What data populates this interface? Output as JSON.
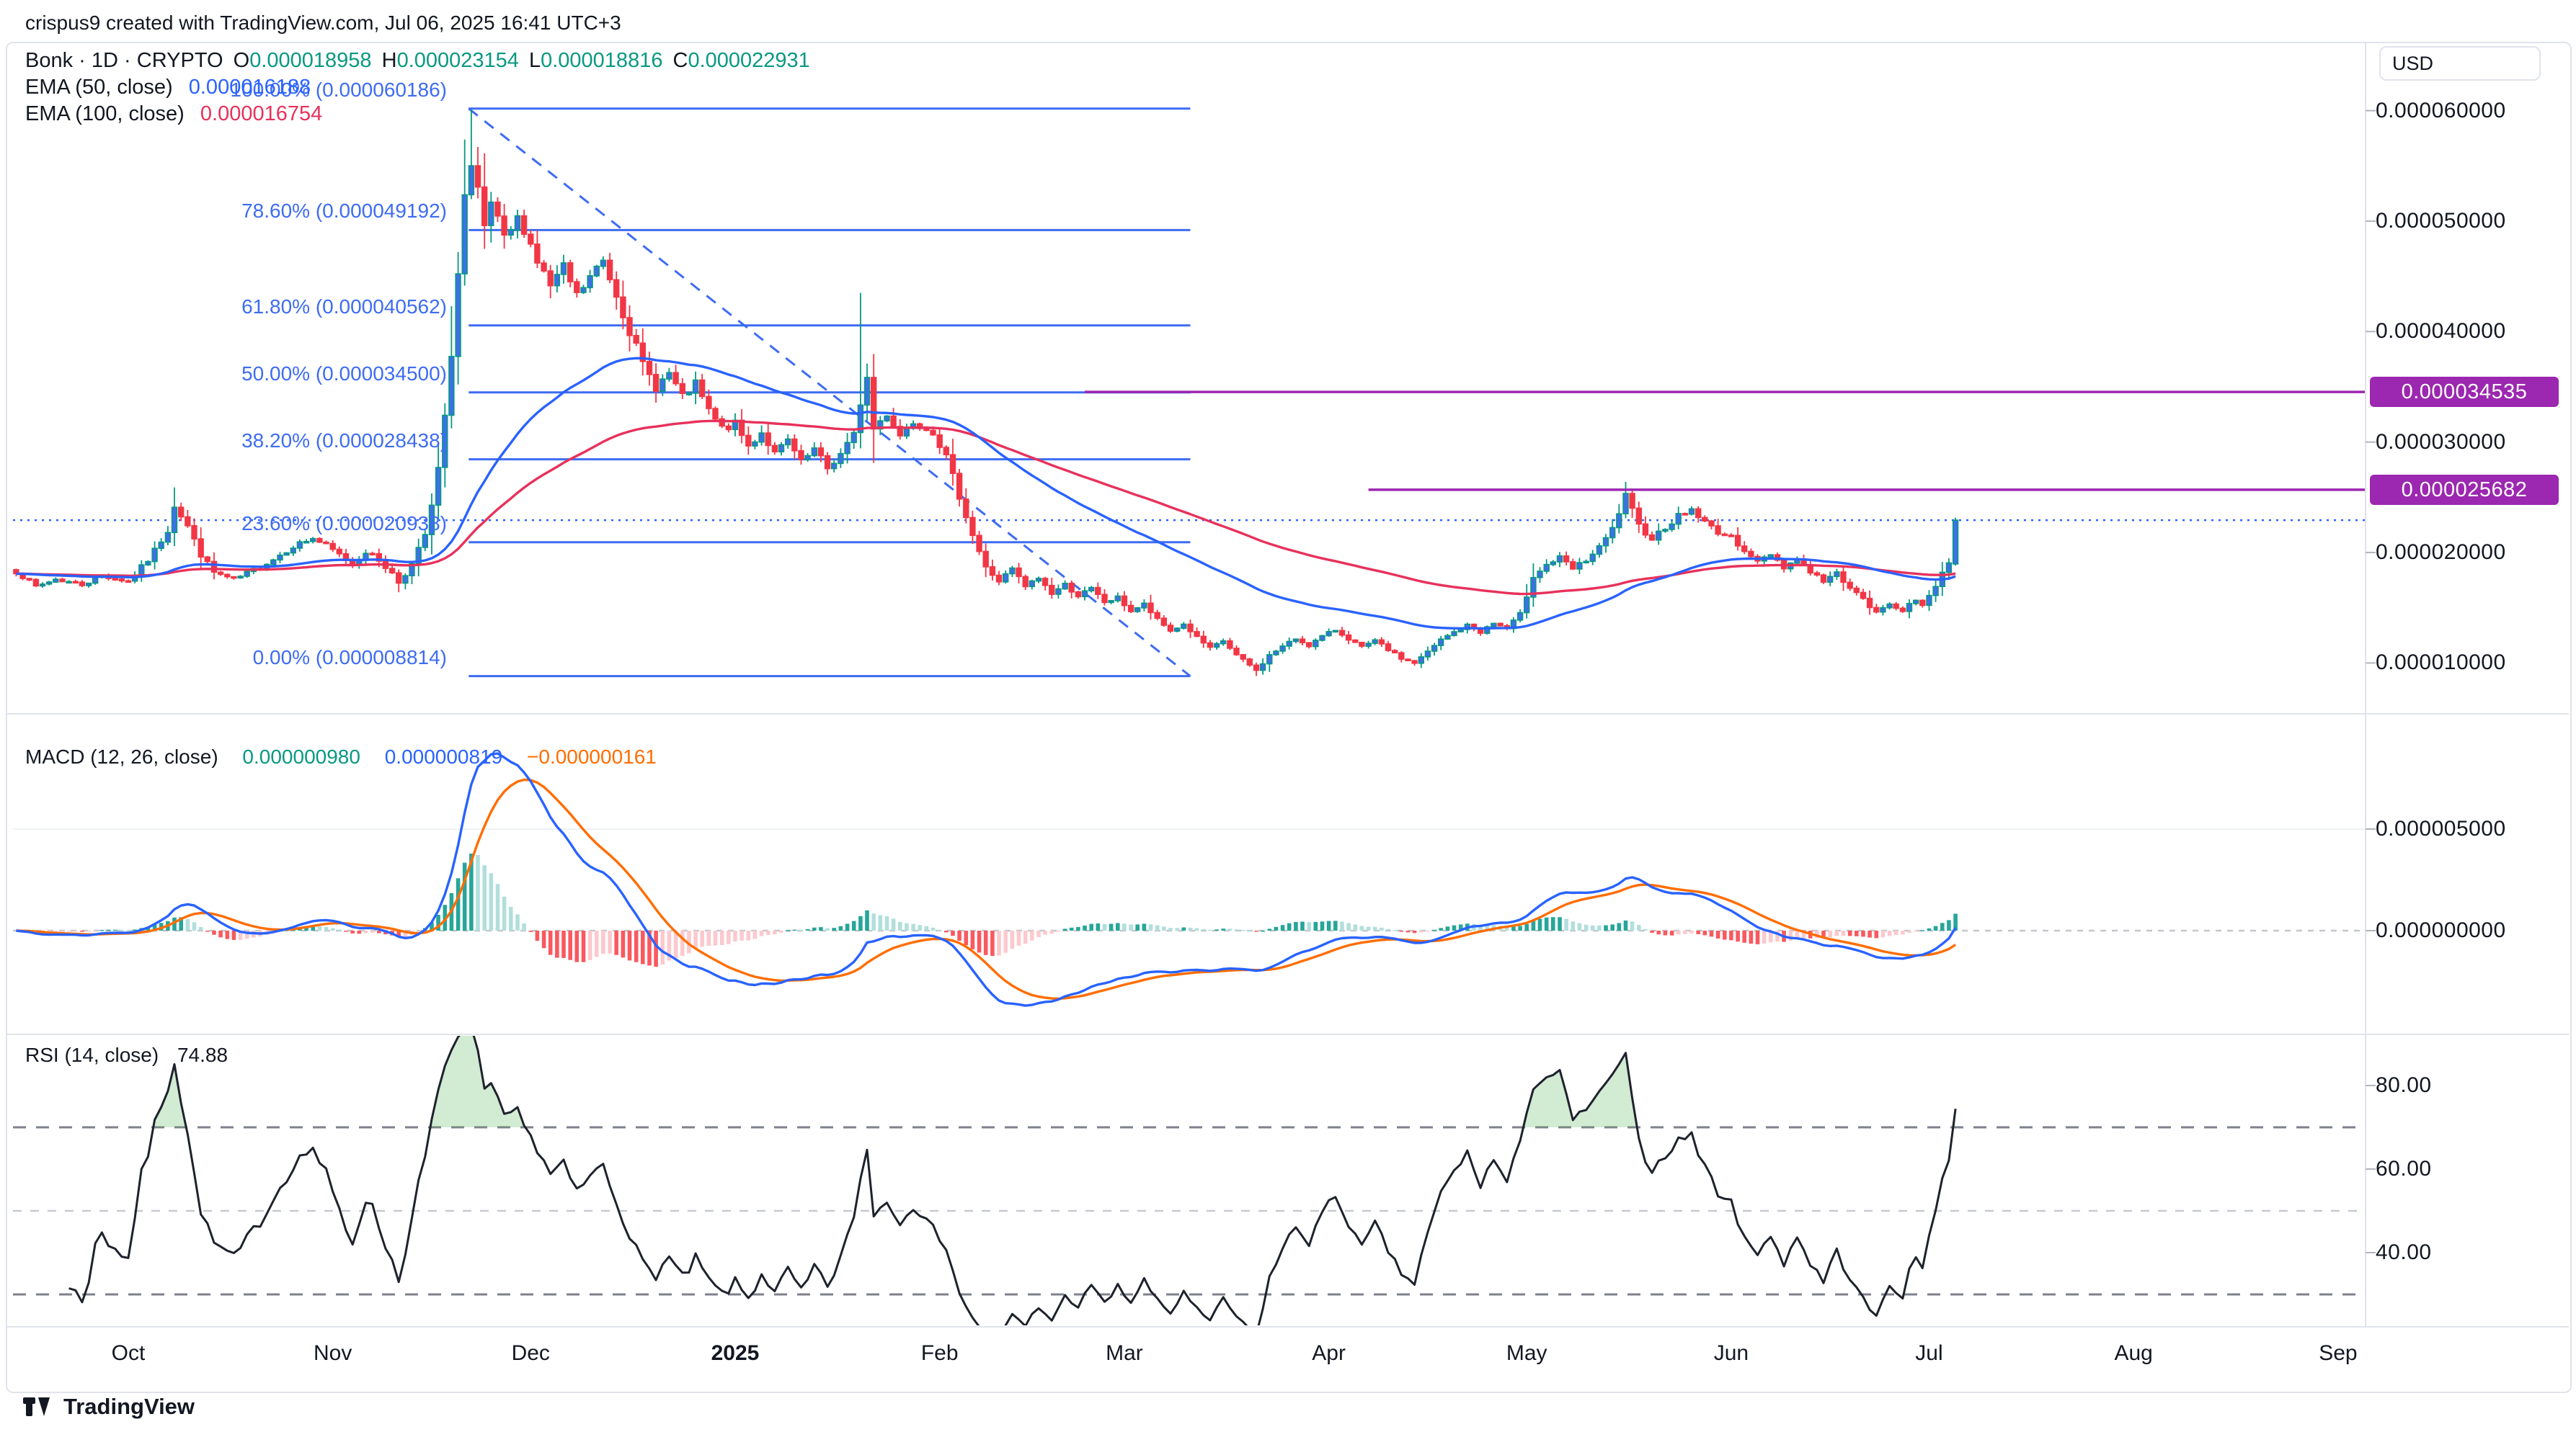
{
  "page": {
    "header": "crispus9 created with TradingView.com, Jul 06, 2025 16:41 UTC+3",
    "logo_text": "TradingView"
  },
  "toolbar": {
    "currency_button": "USD"
  },
  "legend": {
    "symbol": "Bonk",
    "sep": "·",
    "interval": "1D",
    "exchange": "CRYPTO",
    "ohlc": [
      {
        "k": "O",
        "v": "0.000018958"
      },
      {
        "k": "H",
        "v": "0.000023154"
      },
      {
        "k": "L",
        "v": "0.000018816"
      },
      {
        "k": "C",
        "v": "0.000022931"
      }
    ],
    "ema50_label": "EMA (50, close)",
    "ema50_value": "0.000016188",
    "ema100_label": "EMA (100, close)",
    "ema100_value": "0.000016754"
  },
  "macd_legend": {
    "label": "MACD (12, 26, close)",
    "values": [
      {
        "text": "0.000000980",
        "color": "#089981"
      },
      {
        "text": "0.000000819",
        "color": "#2962ff"
      },
      {
        "text": "−0.000000161",
        "color": "#ff6d00"
      }
    ]
  },
  "rsi_legend": {
    "label": "RSI (14, close)",
    "value": "74.88"
  },
  "price_axis": {
    "labels": [
      {
        "text": "0.000060000",
        "value": 60
      },
      {
        "text": "0.000050000",
        "value": 50
      },
      {
        "text": "0.000040000",
        "value": 40
      },
      {
        "text": "0.000030000",
        "value": 30
      },
      {
        "text": "0.000020000",
        "value": 20
      },
      {
        "text": "0.000010000",
        "value": 10
      }
    ],
    "purple_badges": [
      {
        "text": "0.000034535",
        "value": 34.535
      },
      {
        "text": "0.000025682",
        "value": 25.682
      }
    ]
  },
  "macd_axis": {
    "labels": [
      {
        "text": "0.000005000",
        "value": 5
      },
      {
        "text": "0.000000000",
        "value": 0
      }
    ]
  },
  "rsi_axis": {
    "labels": [
      {
        "text": "80.00",
        "value": 80
      },
      {
        "text": "60.00",
        "value": 60
      },
      {
        "text": "40.00",
        "value": 40
      }
    ]
  },
  "time_axis": {
    "months": [
      {
        "label": "Oct",
        "day": 17,
        "bold": false
      },
      {
        "label": "Nov",
        "day": 48,
        "bold": false
      },
      {
        "label": "Dec",
        "day": 78,
        "bold": false
      },
      {
        "label": "2025",
        "day": 109,
        "bold": true
      },
      {
        "label": "Feb",
        "day": 140,
        "bold": false
      },
      {
        "label": "Mar",
        "day": 168,
        "bold": false
      },
      {
        "label": "Apr",
        "day": 199,
        "bold": false
      },
      {
        "label": "May",
        "day": 229,
        "bold": false
      },
      {
        "label": "Jun",
        "day": 260,
        "bold": false
      },
      {
        "label": "Jul",
        "day": 290,
        "bold": false
      },
      {
        "label": "Aug",
        "day": 321,
        "bold": false
      },
      {
        "label": "Sep",
        "day": 352,
        "bold": false
      }
    ]
  },
  "chart_data": {
    "type": "candlestick",
    "title": "Bonk · 1D · CRYPTO",
    "unit_microUSD": 1e-06,
    "price_axis_range_microUSD": [
      5.3,
      62.3
    ],
    "days_total_axis": 356,
    "num_candles": 295,
    "close_anchors_day_microUSD": [
      [
        0,
        18.3
      ],
      [
        3,
        16.9
      ],
      [
        6,
        17.6
      ],
      [
        10,
        17.1
      ],
      [
        13,
        17.9
      ],
      [
        17,
        17.4
      ],
      [
        20,
        19.3
      ],
      [
        23,
        22.0
      ],
      [
        24,
        24.3
      ],
      [
        26,
        22.4
      ],
      [
        28,
        19.8
      ],
      [
        30,
        18.2
      ],
      [
        33,
        17.5
      ],
      [
        36,
        18.4
      ],
      [
        39,
        19.4
      ],
      [
        42,
        20.6
      ],
      [
        45,
        21.3
      ],
      [
        47,
        20.6
      ],
      [
        49,
        19.8
      ],
      [
        51,
        18.9
      ],
      [
        53,
        20.1
      ],
      [
        55,
        19.3
      ],
      [
        57,
        18.1
      ],
      [
        58,
        17.3
      ],
      [
        60,
        18.9
      ],
      [
        62,
        21.6
      ],
      [
        63,
        24.1
      ],
      [
        64,
        27.6
      ],
      [
        65,
        32.1
      ],
      [
        66,
        38.1
      ],
      [
        67,
        45.2
      ],
      [
        68,
        52.2
      ],
      [
        69,
        54.5
      ],
      [
        70,
        52.5
      ],
      [
        71,
        49.2
      ],
      [
        72,
        51.6
      ],
      [
        74,
        48.2
      ],
      [
        76,
        50.1
      ],
      [
        77,
        49.4
      ],
      [
        79,
        46.4
      ],
      [
        81,
        44.1
      ],
      [
        83,
        45.7
      ],
      [
        85,
        43.2
      ],
      [
        87,
        44.9
      ],
      [
        89,
        46.4
      ],
      [
        91,
        43.4
      ],
      [
        93,
        40.1
      ],
      [
        95,
        37.0
      ],
      [
        97,
        35.0
      ],
      [
        99,
        36.2
      ],
      [
        101,
        34.0
      ],
      [
        103,
        35.2
      ],
      [
        105,
        32.8
      ],
      [
        107,
        31.2
      ],
      [
        109,
        31.6
      ],
      [
        111,
        29.6
      ],
      [
        113,
        30.9
      ],
      [
        115,
        28.9
      ],
      [
        117,
        30.1
      ],
      [
        119,
        28.1
      ],
      [
        121,
        29.3
      ],
      [
        123,
        27.6
      ],
      [
        125,
        28.9
      ],
      [
        127,
        30.6
      ],
      [
        128,
        33.6
      ],
      [
        129,
        35.8
      ],
      [
        130,
        31.2
      ],
      [
        132,
        32.6
      ],
      [
        134,
        30.6
      ],
      [
        136,
        31.9
      ],
      [
        139,
        31.0
      ],
      [
        141,
        28.6
      ],
      [
        143,
        25.1
      ],
      [
        145,
        21.6
      ],
      [
        147,
        18.6
      ],
      [
        149,
        17.4
      ],
      [
        151,
        18.5
      ],
      [
        153,
        16.9
      ],
      [
        155,
        17.7
      ],
      [
        157,
        16.3
      ],
      [
        159,
        17.1
      ],
      [
        161,
        16.1
      ],
      [
        163,
        16.7
      ],
      [
        165,
        15.5
      ],
      [
        167,
        15.9
      ],
      [
        169,
        14.7
      ],
      [
        171,
        15.3
      ],
      [
        173,
        13.9
      ],
      [
        175,
        12.9
      ],
      [
        177,
        13.5
      ],
      [
        179,
        12.3
      ],
      [
        181,
        11.3
      ],
      [
        183,
        12.0
      ],
      [
        185,
        10.7
      ],
      [
        187,
        9.8
      ],
      [
        188,
        9.3
      ],
      [
        190,
        10.7
      ],
      [
        192,
        11.5
      ],
      [
        194,
        12.2
      ],
      [
        196,
        11.6
      ],
      [
        198,
        12.4
      ],
      [
        200,
        13.0
      ],
      [
        202,
        12.2
      ],
      [
        204,
        11.4
      ],
      [
        206,
        12.0
      ],
      [
        208,
        11.2
      ],
      [
        210,
        10.4
      ],
      [
        212,
        10.0
      ],
      [
        214,
        11.0
      ],
      [
        216,
        12.1
      ],
      [
        218,
        12.8
      ],
      [
        220,
        13.4
      ],
      [
        222,
        12.8
      ],
      [
        224,
        13.6
      ],
      [
        226,
        13.1
      ],
      [
        228,
        14.4
      ],
      [
        229,
        16.1
      ],
      [
        230,
        17.9
      ],
      [
        232,
        18.9
      ],
      [
        234,
        19.5
      ],
      [
        236,
        18.5
      ],
      [
        238,
        19.3
      ],
      [
        240,
        20.4
      ],
      [
        242,
        22.1
      ],
      [
        243,
        23.6
      ],
      [
        244,
        25.1
      ],
      [
        246,
        22.4
      ],
      [
        248,
        21.3
      ],
      [
        250,
        22.3
      ],
      [
        252,
        23.3
      ],
      [
        254,
        23.9
      ],
      [
        256,
        22.7
      ],
      [
        258,
        21.9
      ],
      [
        260,
        21.3
      ],
      [
        262,
        20.3
      ],
      [
        264,
        19.1
      ],
      [
        266,
        19.9
      ],
      [
        268,
        18.7
      ],
      [
        270,
        19.4
      ],
      [
        272,
        18.3
      ],
      [
        274,
        17.4
      ],
      [
        276,
        18.1
      ],
      [
        278,
        16.9
      ],
      [
        280,
        15.7
      ],
      [
        282,
        14.5
      ],
      [
        284,
        15.4
      ],
      [
        286,
        14.8
      ],
      [
        288,
        15.6
      ],
      [
        289,
        15.3
      ],
      [
        290,
        16.1
      ],
      [
        291,
        17.1
      ],
      [
        292,
        18.2
      ],
      [
        293,
        19.1
      ],
      [
        294,
        22.931
      ]
    ],
    "final_ohlc_microUSD": {
      "o": 18.958,
      "h": 23.154,
      "l": 18.816,
      "c": 22.931
    },
    "wick_overrides_microUSD": {
      "24": {
        "high": 25.9
      },
      "69": {
        "high": 60.1
      },
      "128": {
        "high": 43.5
      },
      "188": {
        "low": 8.814
      }
    },
    "close_line_microUSD": 22.931,
    "fib": {
      "levels": [
        {
          "text": "100.00% (0.000060186)",
          "value": 60.186
        },
        {
          "text": "78.60% (0.000049192)",
          "value": 49.192
        },
        {
          "text": "61.80% (0.000040562)",
          "value": 40.562
        },
        {
          "text": "50.00% (0.000034500)",
          "value": 34.5
        },
        {
          "text": "38.20% (0.000028438)",
          "value": 28.438
        },
        {
          "text": "23.60% (0.000020938)",
          "value": 20.938
        },
        {
          "text": "0.00% (0.000008814)",
          "value": 8.814
        }
      ],
      "day_start": 68.6,
      "day_end": 178
    },
    "horizontal_lines_microUSD": [
      {
        "value": 34.535,
        "day_start": 162
      },
      {
        "value": 25.682,
        "day_start": 205
      }
    ],
    "indicators": {
      "ema_fast": 50,
      "ema_slow": 100,
      "macd": [
        12,
        26,
        9
      ],
      "rsi": 14
    },
    "rsi_bands": {
      "upper": 70,
      "middle": 50,
      "lower": 30
    },
    "macd_axis_microUSD": [
      5,
      0
    ],
    "colors": {
      "up_border": "#089981",
      "up_fill": "#3d70e8",
      "down": "#f23645",
      "ema50": "#2962ff",
      "ema100": "#e8315b",
      "fib": "#3e6cf2",
      "dashed_trend": "#3e6cf2",
      "close_dotted": "#2962ff",
      "purple": "#9c27b0",
      "macd_line": "#2962ff",
      "signal_line": "#ff6d00",
      "hist_pos": "#26a69a",
      "hist_pos_light": "#b2dfdb",
      "hist_neg": "#f9595f",
      "hist_neg_light": "#fbc9ce",
      "rsi_line": "#1e222d",
      "rsi_fill": "rgba(76,175,80,0.25)",
      "band_dark": "#7f828c",
      "band_light": "#c6c9d1",
      "grid": "#e0e3eb",
      "tick": "#b2b5be",
      "text_dark": "#131722"
    }
  }
}
